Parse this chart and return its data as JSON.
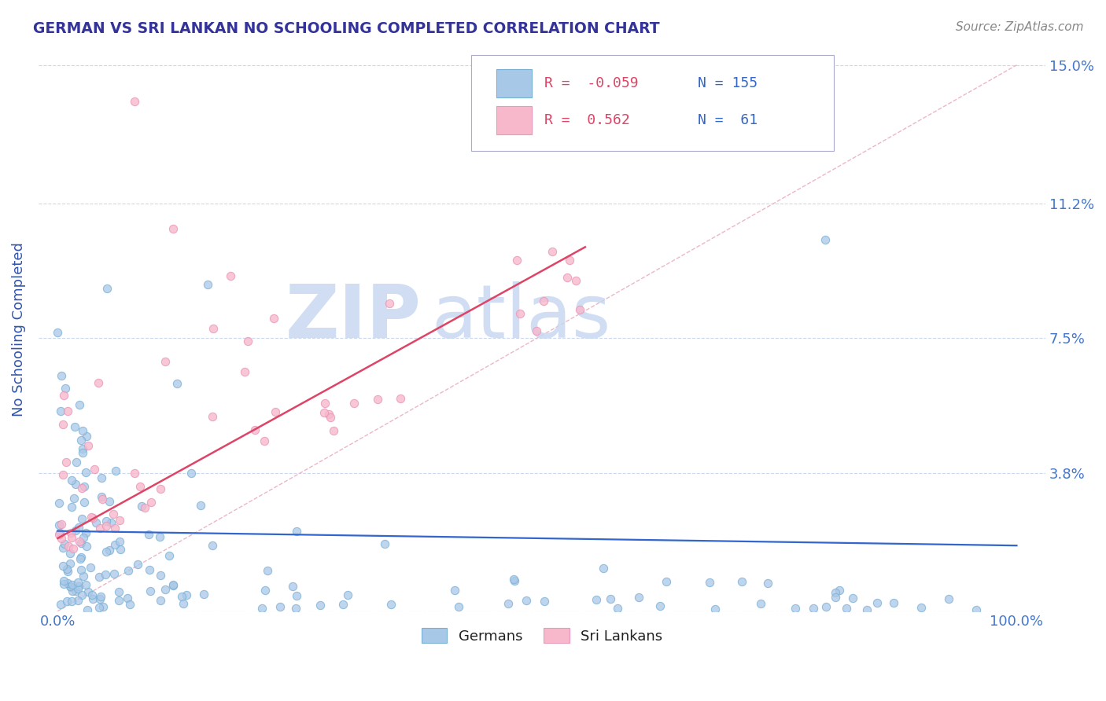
{
  "title": "GERMAN VS SRI LANKAN NO SCHOOLING COMPLETED CORRELATION CHART",
  "source": "Source: ZipAtlas.com",
  "ylabel": "No Schooling Completed",
  "xlabel": "",
  "x_tick_positions": [
    0.0,
    100.0
  ],
  "x_tick_labels": [
    "0.0%",
    "100.0%"
  ],
  "y_ticks": [
    0.0,
    3.8,
    7.5,
    11.2,
    15.0
  ],
  "y_tick_labels": [
    "",
    "3.8%",
    "7.5%",
    "11.2%",
    "15.0%"
  ],
  "xlim": [
    -1.0,
    102.0
  ],
  "ylim": [
    0.0,
    15.5
  ],
  "german_R": -0.059,
  "german_N": 155,
  "srilankan_R": 0.562,
  "srilankan_N": 61,
  "german_color": "#a8c8e8",
  "german_edge_color": "#7aafd4",
  "srilankan_color": "#f8b8cc",
  "srilankan_edge_color": "#e898b8",
  "german_line_color": "#3366cc",
  "srilankan_line_color": "#dd4466",
  "ref_line_color": "#e8b0c0",
  "title_color": "#333399",
  "axis_label_color": "#3355aa",
  "tick_color": "#4477cc",
  "background_color": "#ffffff",
  "grid_color": "#ccd8ee",
  "watermark_zip_color": "#c8d8f0",
  "watermark_atlas_color": "#c8d8f0",
  "legend_R_color": "#dd4466",
  "legend_N_color": "#3366cc",
  "legend_label_color": "#222222",
  "german_line_y0": 2.2,
  "german_line_y1": 1.8,
  "sl_line_y0": 2.0,
  "sl_line_y1": 10.0,
  "sl_line_x0": 0.0,
  "sl_line_x1": 55.0
}
